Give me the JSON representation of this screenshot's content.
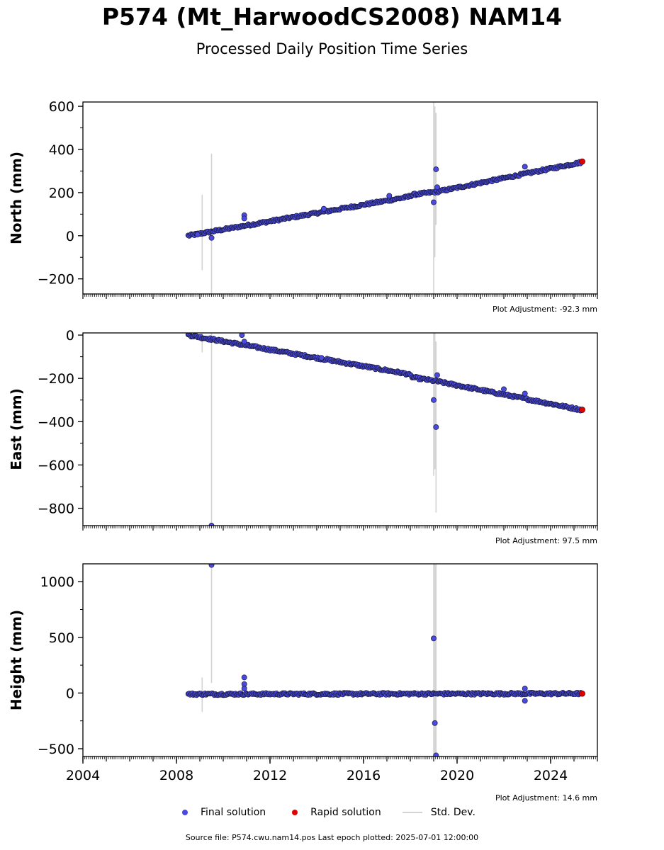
{
  "title": "P574 (Mt_HarwoodCS2008) NAM14",
  "subtitle": "Processed Daily Position Time Series",
  "source_line": "Source file: P574.cwu.nam14.pos  Last epoch plotted: 2025-07-01 12:00:00",
  "legend": {
    "final_label": "Final solution",
    "rapid_label": "Rapid solution",
    "stddev_label": "Std. Dev."
  },
  "colors": {
    "final": "#4a4ae0",
    "rapid": "#e00000",
    "stddev": "#d3d3d3",
    "marker_edge": "#1a1a40"
  },
  "chart_data": [
    {
      "type": "scatter",
      "ylabel": "North (mm)",
      "adjustment": "Plot Adjustment: -92.3 mm",
      "xlim": [
        2004,
        2026
      ],
      "ylim": [
        -270,
        620
      ],
      "yticks": [
        -200,
        0,
        200,
        400,
        600
      ],
      "yticklabels": [
        "−200",
        "0",
        "200",
        "400",
        "600"
      ],
      "series": [
        {
          "name": "Final solution",
          "trend": [
            [
              2008.5,
              0
            ],
            [
              2017.9,
              180
            ],
            [
              2018.1,
              190
            ],
            [
              2019.2,
              205
            ],
            [
              2025.3,
              340
            ]
          ]
        },
        {
          "name": "Rapid solution",
          "points": [
            [
              2025.35,
              344
            ]
          ]
        }
      ],
      "outliers": [
        [
          2008.9,
          5
        ],
        [
          2009.5,
          -10
        ],
        [
          2010.9,
          95
        ],
        [
          2010.9,
          80
        ],
        [
          2019.0,
          155
        ],
        [
          2019.1,
          308
        ],
        [
          2019.15,
          225
        ],
        [
          2014.3,
          125
        ],
        [
          2017.1,
          185
        ],
        [
          2022.9,
          320
        ]
      ],
      "errorbars": [
        [
          2009.1,
          -160,
          190
        ],
        [
          2009.5,
          -270,
          380
        ],
        [
          2019.0,
          -270,
          620
        ],
        [
          2019.05,
          -100,
          600
        ],
        [
          2019.1,
          50,
          570
        ]
      ]
    },
    {
      "type": "scatter",
      "ylabel": "East (mm)",
      "adjustment": "Plot Adjustment: 97.5 mm",
      "xlim": [
        2004,
        2026
      ],
      "ylim": [
        -880,
        10
      ],
      "yticks": [
        -800,
        -600,
        -400,
        -200,
        0
      ],
      "yticklabels": [
        "−800",
        "−600",
        "−400",
        "−200",
        "0"
      ],
      "series": [
        {
          "name": "Final solution",
          "trend": [
            [
              2008.5,
              0
            ],
            [
              2017.9,
              -180
            ],
            [
              2018.1,
              -195
            ],
            [
              2019.2,
              -215
            ],
            [
              2025.3,
              -345
            ]
          ]
        },
        {
          "name": "Rapid solution",
          "points": [
            [
              2025.35,
              -345
            ]
          ]
        }
      ],
      "outliers": [
        [
          2009.5,
          -880
        ],
        [
          2010.8,
          0
        ],
        [
          2010.9,
          -30
        ],
        [
          2019.0,
          -300
        ],
        [
          2019.1,
          -425
        ],
        [
          2019.15,
          -185
        ],
        [
          2014.2,
          -105
        ],
        [
          2022.0,
          -250
        ],
        [
          2022.9,
          -270
        ]
      ],
      "errorbars": [
        [
          2009.1,
          -80,
          10
        ],
        [
          2009.5,
          -880,
          10
        ],
        [
          2019.0,
          -650,
          10
        ],
        [
          2019.05,
          -620,
          10
        ],
        [
          2019.1,
          -820,
          -30
        ]
      ]
    },
    {
      "type": "scatter",
      "ylabel": "Height (mm)",
      "adjustment": "Plot Adjustment: 14.6 mm",
      "xlim": [
        2004,
        2026
      ],
      "ylim": [
        -570,
        1160
      ],
      "xticks": [
        2004,
        2008,
        2012,
        2016,
        2020,
        2024
      ],
      "yticks": [
        -500,
        0,
        500,
        1000
      ],
      "yticklabels": [
        "−500",
        "0",
        "500",
        "1000"
      ],
      "series": [
        {
          "name": "Final solution",
          "trend": [
            [
              2008.5,
              -10
            ],
            [
              2025.3,
              -5
            ]
          ]
        },
        {
          "name": "Rapid solution",
          "points": [
            [
              2025.35,
              -5
            ]
          ]
        }
      ],
      "outliers": [
        [
          2009.5,
          1150
        ],
        [
          2010.9,
          140
        ],
        [
          2010.9,
          80
        ],
        [
          2010.9,
          40
        ],
        [
          2019.0,
          490
        ],
        [
          2019.05,
          -270
        ],
        [
          2019.1,
          -560
        ],
        [
          2022.9,
          -70
        ],
        [
          2022.9,
          40
        ]
      ],
      "errorbars": [
        [
          2009.1,
          -170,
          140
        ],
        [
          2009.5,
          90,
          1160
        ],
        [
          2019.0,
          -570,
          1160
        ],
        [
          2019.05,
          -570,
          1160
        ],
        [
          2019.1,
          -570,
          1160
        ]
      ]
    }
  ]
}
